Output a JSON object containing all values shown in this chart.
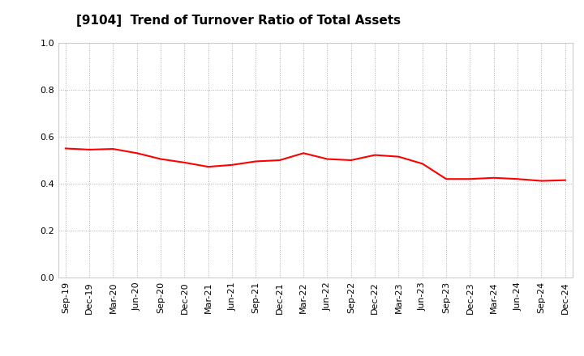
{
  "title": "[9104]  Trend of Turnover Ratio of Total Assets",
  "x_labels": [
    "Sep-19",
    "Dec-19",
    "Mar-20",
    "Jun-20",
    "Sep-20",
    "Dec-20",
    "Mar-21",
    "Jun-21",
    "Sep-21",
    "Dec-21",
    "Mar-22",
    "Jun-22",
    "Sep-22",
    "Dec-22",
    "Mar-23",
    "Jun-23",
    "Sep-23",
    "Dec-23",
    "Mar-24",
    "Jun-24",
    "Sep-24",
    "Dec-24"
  ],
  "y_values": [
    0.55,
    0.545,
    0.548,
    0.53,
    0.505,
    0.49,
    0.472,
    0.48,
    0.495,
    0.5,
    0.53,
    0.505,
    0.5,
    0.522,
    0.515,
    0.485,
    0.42,
    0.42,
    0.425,
    0.42,
    0.412,
    0.415
  ],
  "line_color": "#FF0000",
  "line_width": 1.5,
  "ylim": [
    0.0,
    1.0
  ],
  "yticks": [
    0.0,
    0.2,
    0.4,
    0.6,
    0.8,
    1.0
  ],
  "background_color": "#FFFFFF",
  "grid_color": "#999999",
  "title_fontsize": 11,
  "tick_fontsize": 8,
  "title_color": "#000000"
}
